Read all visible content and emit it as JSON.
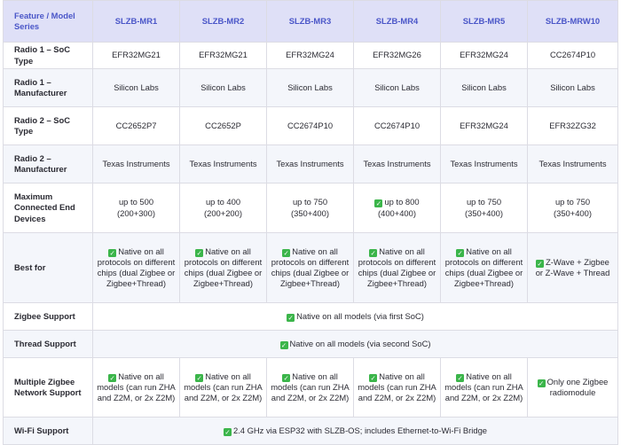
{
  "header": {
    "feature": "Feature / Model Series",
    "models": [
      "SLZB-MR1",
      "SLZB-MR2",
      "SLZB-MR3",
      "SLZB-MR4",
      "SLZB-MR5",
      "SLZB-MRW10"
    ]
  },
  "rows": {
    "r1soc": {
      "label": "Radio 1 – SoC Type",
      "cells": [
        "EFR32MG21",
        "EFR32MG21",
        "EFR32MG24",
        "EFR32MG26",
        "EFR32MG24",
        "CC2674P10"
      ]
    },
    "r1man": {
      "label": "Radio 1 – Manufacturer",
      "cells": [
        "Silicon Labs",
        "Silicon Labs",
        "Silicon Labs",
        "Silicon Labs",
        "Silicon Labs",
        "Silicon Labs"
      ]
    },
    "r2soc": {
      "label": "Radio 2 – SoC Type",
      "cells": [
        "CC2652P7",
        "CC2652P",
        "CC2674P10",
        "CC2674P10",
        "EFR32MG24",
        "EFR32ZG32"
      ]
    },
    "r2man": {
      "label": "Radio 2 – Manufacturer",
      "cells": [
        "Texas Instruments",
        "Texas Instruments",
        "Texas Instruments",
        "Texas Instruments",
        "Texas Instruments",
        "Texas Instruments"
      ]
    },
    "maxdev": {
      "label": "Maximum Connected End Devices",
      "cells": [
        {
          "l1": "up to 500",
          "l2": "(200+300)"
        },
        {
          "l1": "up to 400",
          "l2": "(200+200)"
        },
        {
          "l1": "up to 750",
          "l2": "(350+400)"
        },
        {
          "l1": "up to 800",
          "l2": "(400+400)"
        },
        {
          "l1": "up to 750",
          "l2": "(350+400)"
        },
        {
          "l1": "up to 750",
          "l2": "(350+400)"
        }
      ]
    },
    "best": {
      "label": "Best for",
      "cells": [
        "Native on all protocols on different chips (dual Zigbee or Zigbee+Thread)",
        "Native on all protocols on different chips (dual Zigbee or Zigbee+Thread)",
        "Native on all protocols on different chips (dual Zigbee or Zigbee+Thread)",
        "Native on all protocols on different chips (dual Zigbee or Zigbee+Thread)",
        "Native on all protocols on different chips (dual Zigbee or Zigbee+Thread)",
        "Z-Wave + Zigbee or Z-Wave + Thread"
      ]
    },
    "zigbee": {
      "label": "Zigbee Support",
      "value": "Native on all models (via first SoC)"
    },
    "thread": {
      "label": "Thread Support",
      "value": "Native on all models (via second SoC)"
    },
    "multi": {
      "label": "Multiple Zigbee Network Support",
      "cells": [
        "Native on all models (can run ZHA and Z2M, or 2x Z2M)",
        "Native on all models (can run ZHA and Z2M, or 2x Z2M)",
        "Native on all models (can run ZHA and Z2M, or 2x Z2M)",
        "Native on all models (can run ZHA and Z2M, or 2x Z2M)",
        "Native on all models (can run ZHA and Z2M, or 2x Z2M)",
        "Only one Zigbee radiomodule"
      ]
    },
    "wifi": {
      "label": "Wi-Fi Support",
      "value": "2.4 GHz via ESP32 with SLZB-OS; includes Ethernet-to-Wi-Fi Bridge"
    }
  },
  "icons": {
    "check": "check-icon",
    "check_color": "#3bb54a"
  },
  "colors": {
    "header_bg": "#dfe0f7",
    "header_text": "#4a56c8",
    "alt_row_bg": "#f4f6fb"
  }
}
